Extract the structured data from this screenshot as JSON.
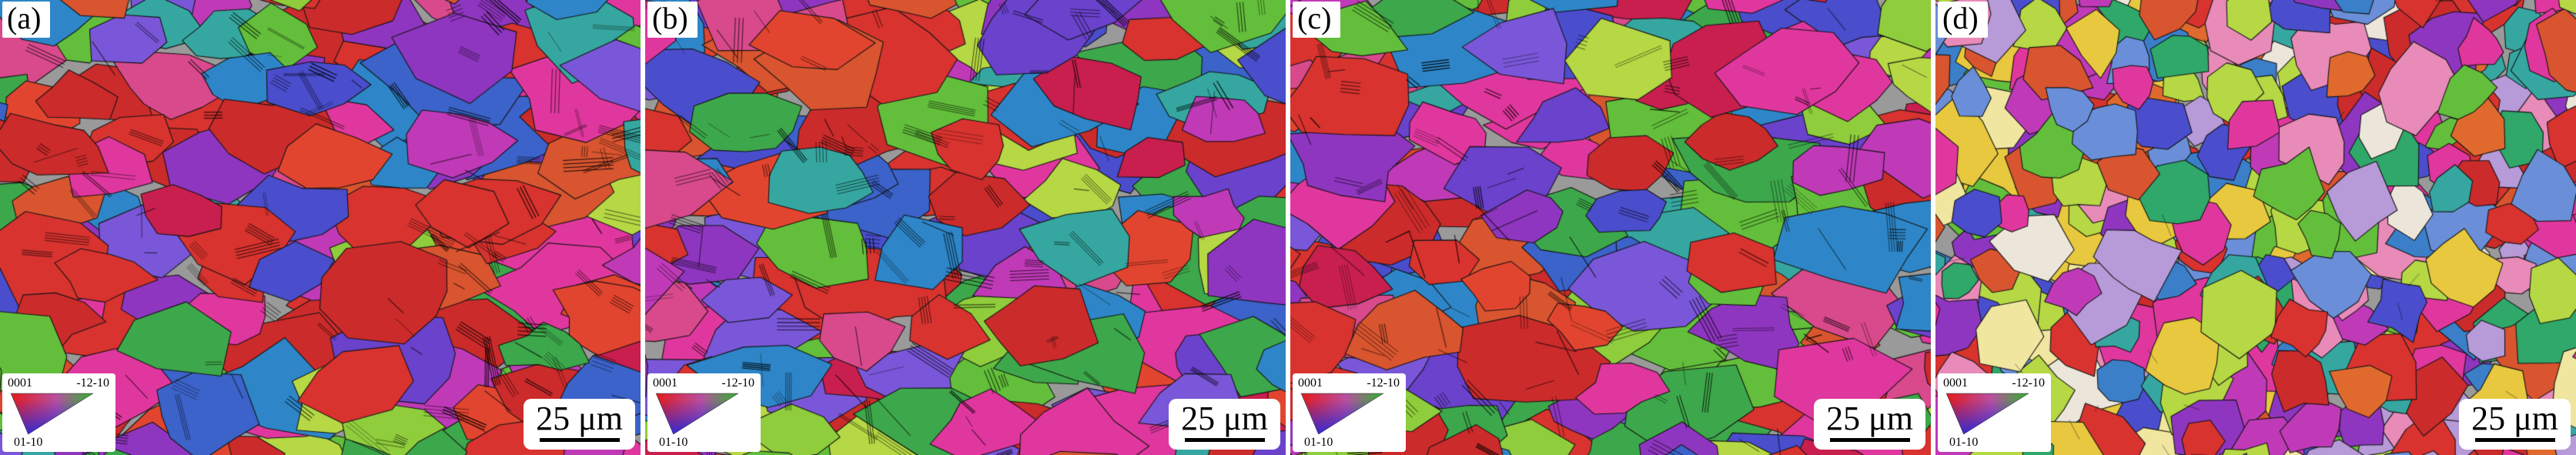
{
  "figure": {
    "panels": [
      {
        "label": "(a)",
        "seed": 11,
        "style": "deformed"
      },
      {
        "label": "(b)",
        "seed": 22,
        "style": "deformed"
      },
      {
        "label": "(c)",
        "seed": 33,
        "style": "deformed"
      },
      {
        "label": "(d)",
        "seed": 44,
        "style": "recrystallized"
      }
    ],
    "legend": {
      "top_left": "0001",
      "top_right": "-12-10",
      "bottom": "01-10",
      "corner_colors": {
        "c0001": "#e41a1c",
        "c_12_10": "#2db52d",
        "c01_10": "#2a2ad8"
      }
    },
    "scale_bar": {
      "label": "25 μm",
      "bar_color": "#000000"
    },
    "palettes": {
      "deformed": [
        "#d8332f",
        "#cc2b2b",
        "#e2452f",
        "#c81f4e",
        "#e0379e",
        "#c03ab8",
        "#8f36c0",
        "#6a42cc",
        "#4a4ecd",
        "#3b63c9",
        "#2e86c8",
        "#36a7a0",
        "#3da84b",
        "#63bf3b",
        "#8fcd3c",
        "#b5d844",
        "#d8552f",
        "#d84a8c",
        "#7a57d8",
        "#cc2b2b",
        "#3da84b",
        "#d8332f",
        "#e0379e",
        "#d8332f",
        "#8f36c0",
        "#63bf3b"
      ],
      "recrystallized": [
        "#d8332f",
        "#e06a2e",
        "#e8c83e",
        "#b5d844",
        "#63bf3b",
        "#2fa86a",
        "#36a7a0",
        "#3b7fc9",
        "#4a4ecd",
        "#8f36c0",
        "#c03ab8",
        "#e0379e",
        "#e88bb8",
        "#b79ad8",
        "#f0e6a0",
        "#ece6da",
        "#d8552f",
        "#cc2b2b",
        "#6a8fd8",
        "#d8332f",
        "#b5d844",
        "#e0379e"
      ]
    },
    "grain_boundary_color": "#141414"
  }
}
